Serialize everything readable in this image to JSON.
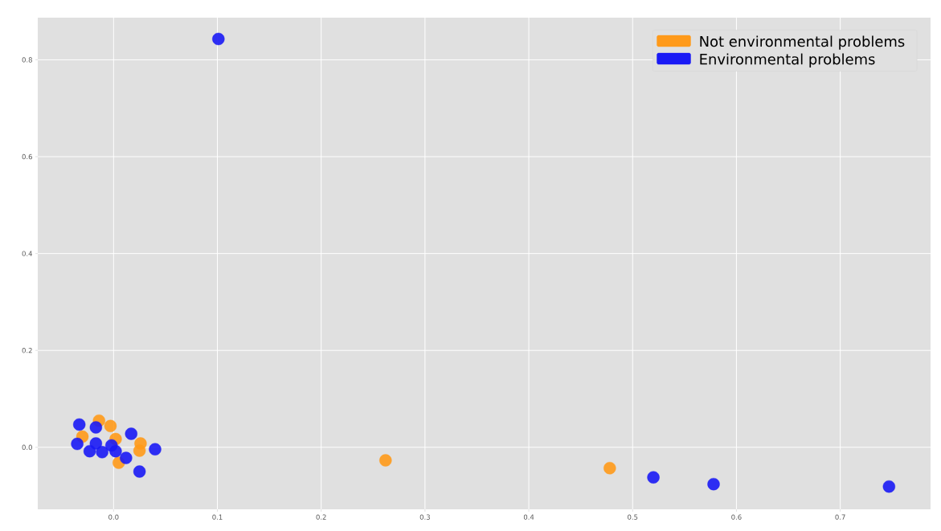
{
  "chart_data": {
    "type": "scatter",
    "series": [
      {
        "name": "Not environmental problems",
        "color": "#ff9a1a",
        "x": [
          -0.014,
          -0.003,
          -0.03,
          0.002,
          0.026,
          0.025,
          0.005,
          0.262,
          0.478
        ],
        "values": [
          0.055,
          0.044,
          0.022,
          0.017,
          0.008,
          -0.007,
          -0.032,
          -0.027,
          -0.043
        ]
      },
      {
        "name": "Environmental problems",
        "color": "#1a1af5",
        "x": [
          -0.033,
          -0.017,
          0.017,
          -0.035,
          -0.017,
          -0.023,
          -0.011,
          -0.002,
          0.002,
          0.012,
          0.04,
          0.025,
          0.101,
          0.52,
          0.578,
          0.747
        ],
        "values": [
          0.047,
          0.041,
          0.028,
          0.007,
          0.008,
          -0.008,
          -0.01,
          0.004,
          -0.008,
          -0.022,
          -0.004,
          -0.05,
          0.843,
          -0.062,
          -0.076,
          -0.081
        ]
      }
    ],
    "xlim": [
      -0.073,
      0.787
    ],
    "ylim": [
      -0.128,
      0.887
    ],
    "xticks": [
      {
        "value": 0.0,
        "label": "0.0"
      },
      0.1,
      0.2,
      0.3,
      0.4,
      0.5,
      0.6,
      0.7
    ],
    "yticks": [
      {
        "value": 0.0,
        "label": "0.0"
      },
      0.2,
      0.4,
      0.6,
      0.8
    ],
    "grid": true,
    "legend": "top right",
    "marker": "circle"
  }
}
